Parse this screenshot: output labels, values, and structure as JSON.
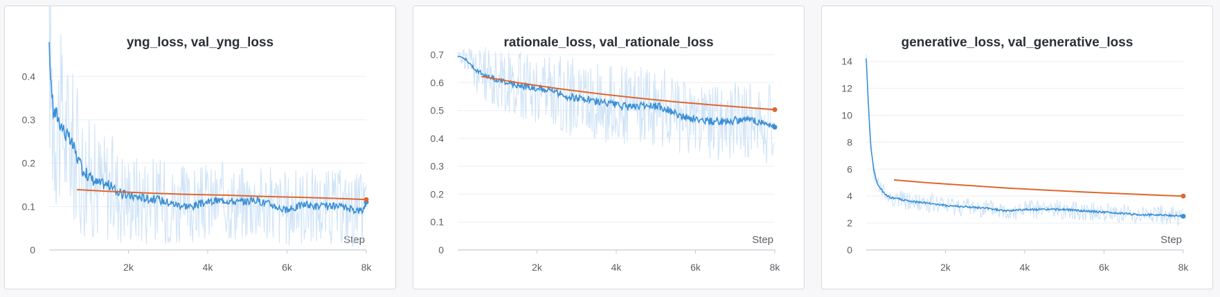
{
  "colors": {
    "train": "#3a8fd6",
    "train_raw": "#cfe3f7",
    "val": "#e0652b",
    "grid": "#ebedf0"
  },
  "chart_data": [
    {
      "type": "line",
      "title": "yng_loss, val_yng_loss",
      "xlabel": "Step",
      "ylabel": "",
      "xlim": [
        0,
        8000
      ],
      "ylim": [
        0,
        0.45
      ],
      "x_ticks": [
        2000,
        4000,
        6000,
        8000
      ],
      "x_tick_labels": [
        "2k",
        "4k",
        "6k",
        "8k"
      ],
      "y_ticks": [
        0,
        0.1,
        0.2,
        0.3,
        0.4
      ],
      "y_tick_labels": [
        "0",
        "0.1",
        "0.2",
        "0.3",
        "0.4"
      ],
      "grid": true,
      "series": [
        {
          "name": "yng_loss",
          "style": "smoothed_with_raw",
          "x": [
            0,
            100,
            200,
            400,
            600,
            800,
            1000,
            1200,
            1500,
            1800,
            2000,
            2400,
            2800,
            3200,
            3600,
            4000,
            4400,
            4800,
            5200,
            5600,
            6000,
            6400,
            6800,
            7200,
            7600,
            7900,
            8000
          ],
          "y": [
            0.46,
            0.32,
            0.31,
            0.27,
            0.24,
            0.19,
            0.17,
            0.155,
            0.15,
            0.13,
            0.125,
            0.12,
            0.115,
            0.105,
            0.1,
            0.11,
            0.115,
            0.11,
            0.115,
            0.105,
            0.09,
            0.105,
            0.1,
            0.1,
            0.095,
            0.09,
            0.11
          ],
          "raw_band": [
            0.13,
            0.13,
            0.12,
            0.11,
            0.1,
            0.09,
            0.08,
            0.075,
            0.07,
            0.065,
            0.06,
            0.06,
            0.055,
            0.055,
            0.05,
            0.05,
            0.05,
            0.05,
            0.05,
            0.05,
            0.05,
            0.05,
            0.05,
            0.05,
            0.05,
            0.05,
            0.05
          ]
        },
        {
          "name": "val_yng_loss",
          "style": "line",
          "x": [
            700,
            1500,
            2500,
            3500,
            4500,
            5500,
            6500,
            7500,
            8000
          ],
          "y": [
            0.139,
            0.135,
            0.131,
            0.128,
            0.126,
            0.123,
            0.121,
            0.118,
            0.116
          ]
        }
      ]
    },
    {
      "type": "line",
      "title": "rationale_loss, val_rationale_loss",
      "xlabel": "Step",
      "ylabel": "",
      "xlim": [
        0,
        8000
      ],
      "ylim": [
        0,
        0.7
      ],
      "x_ticks": [
        2000,
        4000,
        6000,
        8000
      ],
      "x_tick_labels": [
        "2k",
        "4k",
        "6k",
        "8k"
      ],
      "y_ticks": [
        0,
        0.1,
        0.2,
        0.3,
        0.4,
        0.5,
        0.6,
        0.7
      ],
      "y_tick_labels": [
        "0",
        "0.1",
        "0.2",
        "0.3",
        "0.4",
        "0.5",
        "0.6",
        "0.7"
      ],
      "grid": true,
      "series": [
        {
          "name": "rationale_loss",
          "style": "smoothed_with_raw",
          "x": [
            0,
            150,
            300,
            500,
            800,
            1200,
            1600,
            2000,
            2400,
            2800,
            3200,
            3600,
            4000,
            4400,
            4800,
            5200,
            5600,
            6000,
            6400,
            6800,
            7200,
            7600,
            7900,
            8000
          ],
          "y": [
            0.695,
            0.69,
            0.67,
            0.64,
            0.62,
            0.6,
            0.59,
            0.58,
            0.57,
            0.55,
            0.54,
            0.53,
            0.52,
            0.51,
            0.52,
            0.51,
            0.48,
            0.47,
            0.46,
            0.46,
            0.47,
            0.46,
            0.45,
            0.44
          ],
          "raw_band": [
            0.01,
            0.02,
            0.04,
            0.05,
            0.06,
            0.06,
            0.07,
            0.07,
            0.07,
            0.08,
            0.08,
            0.08,
            0.08,
            0.08,
            0.08,
            0.08,
            0.08,
            0.08,
            0.08,
            0.08,
            0.08,
            0.08,
            0.08,
            0.08
          ]
        },
        {
          "name": "val_rationale_loss",
          "style": "line",
          "x": [
            600,
            1500,
            2500,
            3500,
            4500,
            5500,
            6500,
            7500,
            8000
          ],
          "y": [
            0.622,
            0.6,
            0.579,
            0.561,
            0.545,
            0.531,
            0.519,
            0.508,
            0.503
          ]
        }
      ]
    },
    {
      "type": "line",
      "title": "generative_loss, val_generative_loss",
      "xlabel": "Step",
      "ylabel": "",
      "xlim": [
        0,
        8000
      ],
      "ylim": [
        0,
        14.5
      ],
      "x_ticks": [
        2000,
        4000,
        6000,
        8000
      ],
      "x_tick_labels": [
        "2k",
        "4k",
        "6k",
        "8k"
      ],
      "y_ticks": [
        0,
        2,
        4,
        6,
        8,
        10,
        12,
        14
      ],
      "y_tick_labels": [
        "0",
        "2",
        "4",
        "6",
        "8",
        "10",
        "12",
        "14"
      ],
      "grid": true,
      "series": [
        {
          "name": "generative_loss",
          "style": "smoothed_with_raw",
          "x": [
            0,
            60,
            120,
            200,
            300,
            450,
            600,
            800,
            1100,
            1500,
            2000,
            2500,
            3000,
            3500,
            4000,
            4500,
            5000,
            5500,
            6000,
            6500,
            7000,
            7500,
            8000
          ],
          "y": [
            14.2,
            10.5,
            7.5,
            5.8,
            4.8,
            4.2,
            3.9,
            3.8,
            3.6,
            3.5,
            3.3,
            3.2,
            3.1,
            2.9,
            3.0,
            3.0,
            3.0,
            2.9,
            2.8,
            2.7,
            2.6,
            2.6,
            2.5
          ],
          "raw_band": [
            0.2,
            0.3,
            0.3,
            0.4,
            0.4,
            0.4,
            0.4,
            0.4,
            0.4,
            0.4,
            0.4,
            0.4,
            0.4,
            0.4,
            0.4,
            0.4,
            0.4,
            0.4,
            0.4,
            0.4,
            0.4,
            0.4,
            0.4
          ]
        },
        {
          "name": "val_generative_loss",
          "style": "line",
          "x": [
            700,
            1500,
            2500,
            3500,
            4500,
            5500,
            6500,
            7500,
            8000
          ],
          "y": [
            5.2,
            5.0,
            4.8,
            4.6,
            4.45,
            4.3,
            4.17,
            4.05,
            4.0
          ]
        }
      ]
    }
  ]
}
